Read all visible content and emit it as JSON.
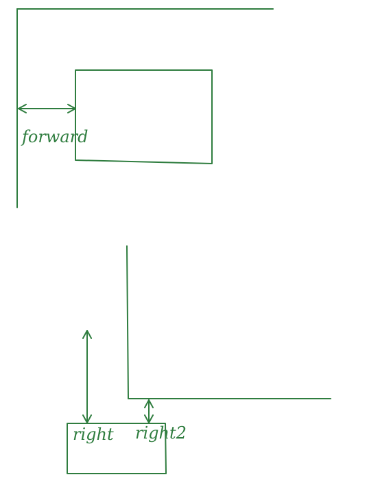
{
  "colors": {
    "ink": "#2f7d3f",
    "background": "#ffffff"
  },
  "labels": {
    "forward": "forward",
    "right": "right",
    "right2": "right2"
  },
  "arrows": {
    "forward": {
      "heads": "both"
    },
    "right": {
      "heads": "both"
    },
    "right2": {
      "heads": "both"
    }
  }
}
